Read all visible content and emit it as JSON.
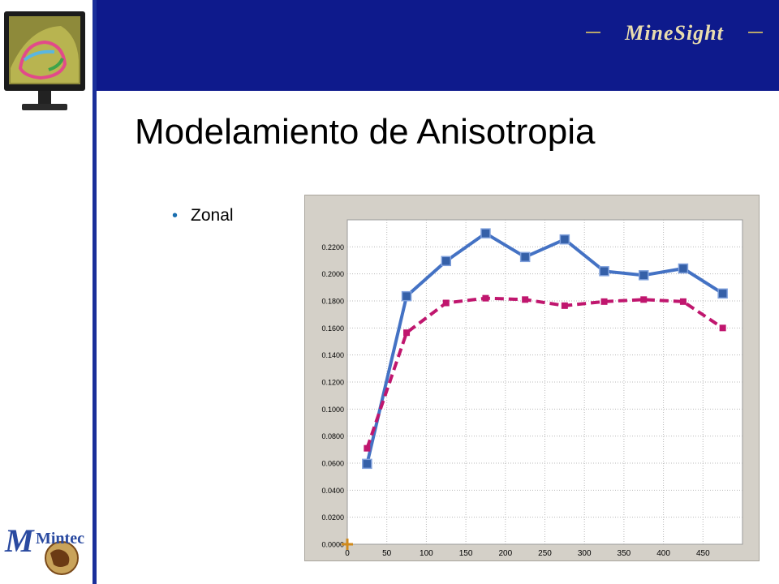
{
  "slide": {
    "title": "Modelamiento de Anisotropia",
    "bullet": "Zonal",
    "brand_text": "MineSight",
    "company_text": "Mintec"
  },
  "colors": {
    "accent_blue": "#0e1a8c",
    "series_solid": "#4472c4",
    "series_dashed": "#c0166e",
    "marker_orange": "#d08a1c"
  },
  "chart_data": {
    "type": "line",
    "title": "",
    "xlabel": "",
    "ylabel": "",
    "xlim": [
      0,
      500
    ],
    "ylim": [
      0,
      0.24
    ],
    "grid": true,
    "x_ticks": [
      "0",
      "50",
      "100",
      "150",
      "200",
      "250",
      "300",
      "350",
      "400",
      "450"
    ],
    "y_ticks": [
      "0.0000",
      "0.0200",
      "0.0400",
      "0.0600",
      "0.0800",
      "0.1000",
      "0.1200",
      "0.1400",
      "0.1600",
      "0.1800",
      "0.2000",
      "0.2200"
    ],
    "series": [
      {
        "style": "solid",
        "x": [
          25,
          75,
          125,
          175,
          225,
          275,
          325,
          375,
          425,
          475
        ],
        "values": [
          0.0595,
          0.1835,
          0.2095,
          0.23,
          0.2125,
          0.2255,
          0.202,
          0.199,
          0.204,
          0.1855
        ]
      },
      {
        "style": "dashed",
        "x": [
          25,
          75,
          125,
          175,
          225,
          275,
          325,
          375,
          425,
          475
        ],
        "values": [
          0.071,
          0.1565,
          0.1785,
          0.182,
          0.181,
          0.1765,
          0.1795,
          0.181,
          0.1795,
          0.16
        ]
      }
    ]
  }
}
